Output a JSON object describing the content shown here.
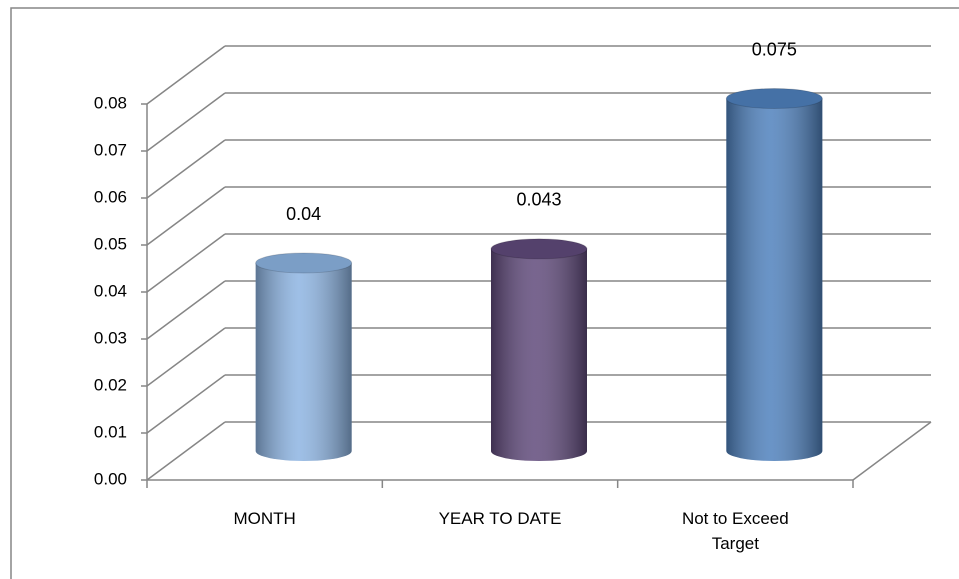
{
  "chart_data": {
    "type": "bar",
    "categories": [
      "MONTH",
      "YEAR TO DATE",
      "Not to Exceed Target"
    ],
    "values": [
      0.04,
      0.043,
      0.075
    ],
    "colors": [
      "#8db4e2",
      "#604a7b",
      "#4f81bd"
    ],
    "ylim": [
      0,
      0.08
    ],
    "yticks": [
      {
        "value": 0,
        "label": "0.00"
      },
      {
        "value": 0.01,
        "label": "0.01"
      },
      {
        "value": 0.02,
        "label": "0.02"
      },
      {
        "value": 0.03,
        "label": "0.03"
      },
      {
        "value": 0.04,
        "label": "0.04"
      },
      {
        "value": 0.05,
        "label": "0.05"
      },
      {
        "value": 0.06,
        "label": "0.06"
      },
      {
        "value": 0.07,
        "label": "0.07"
      },
      {
        "value": 0.08,
        "label": "0.08"
      }
    ],
    "grid": true
  }
}
